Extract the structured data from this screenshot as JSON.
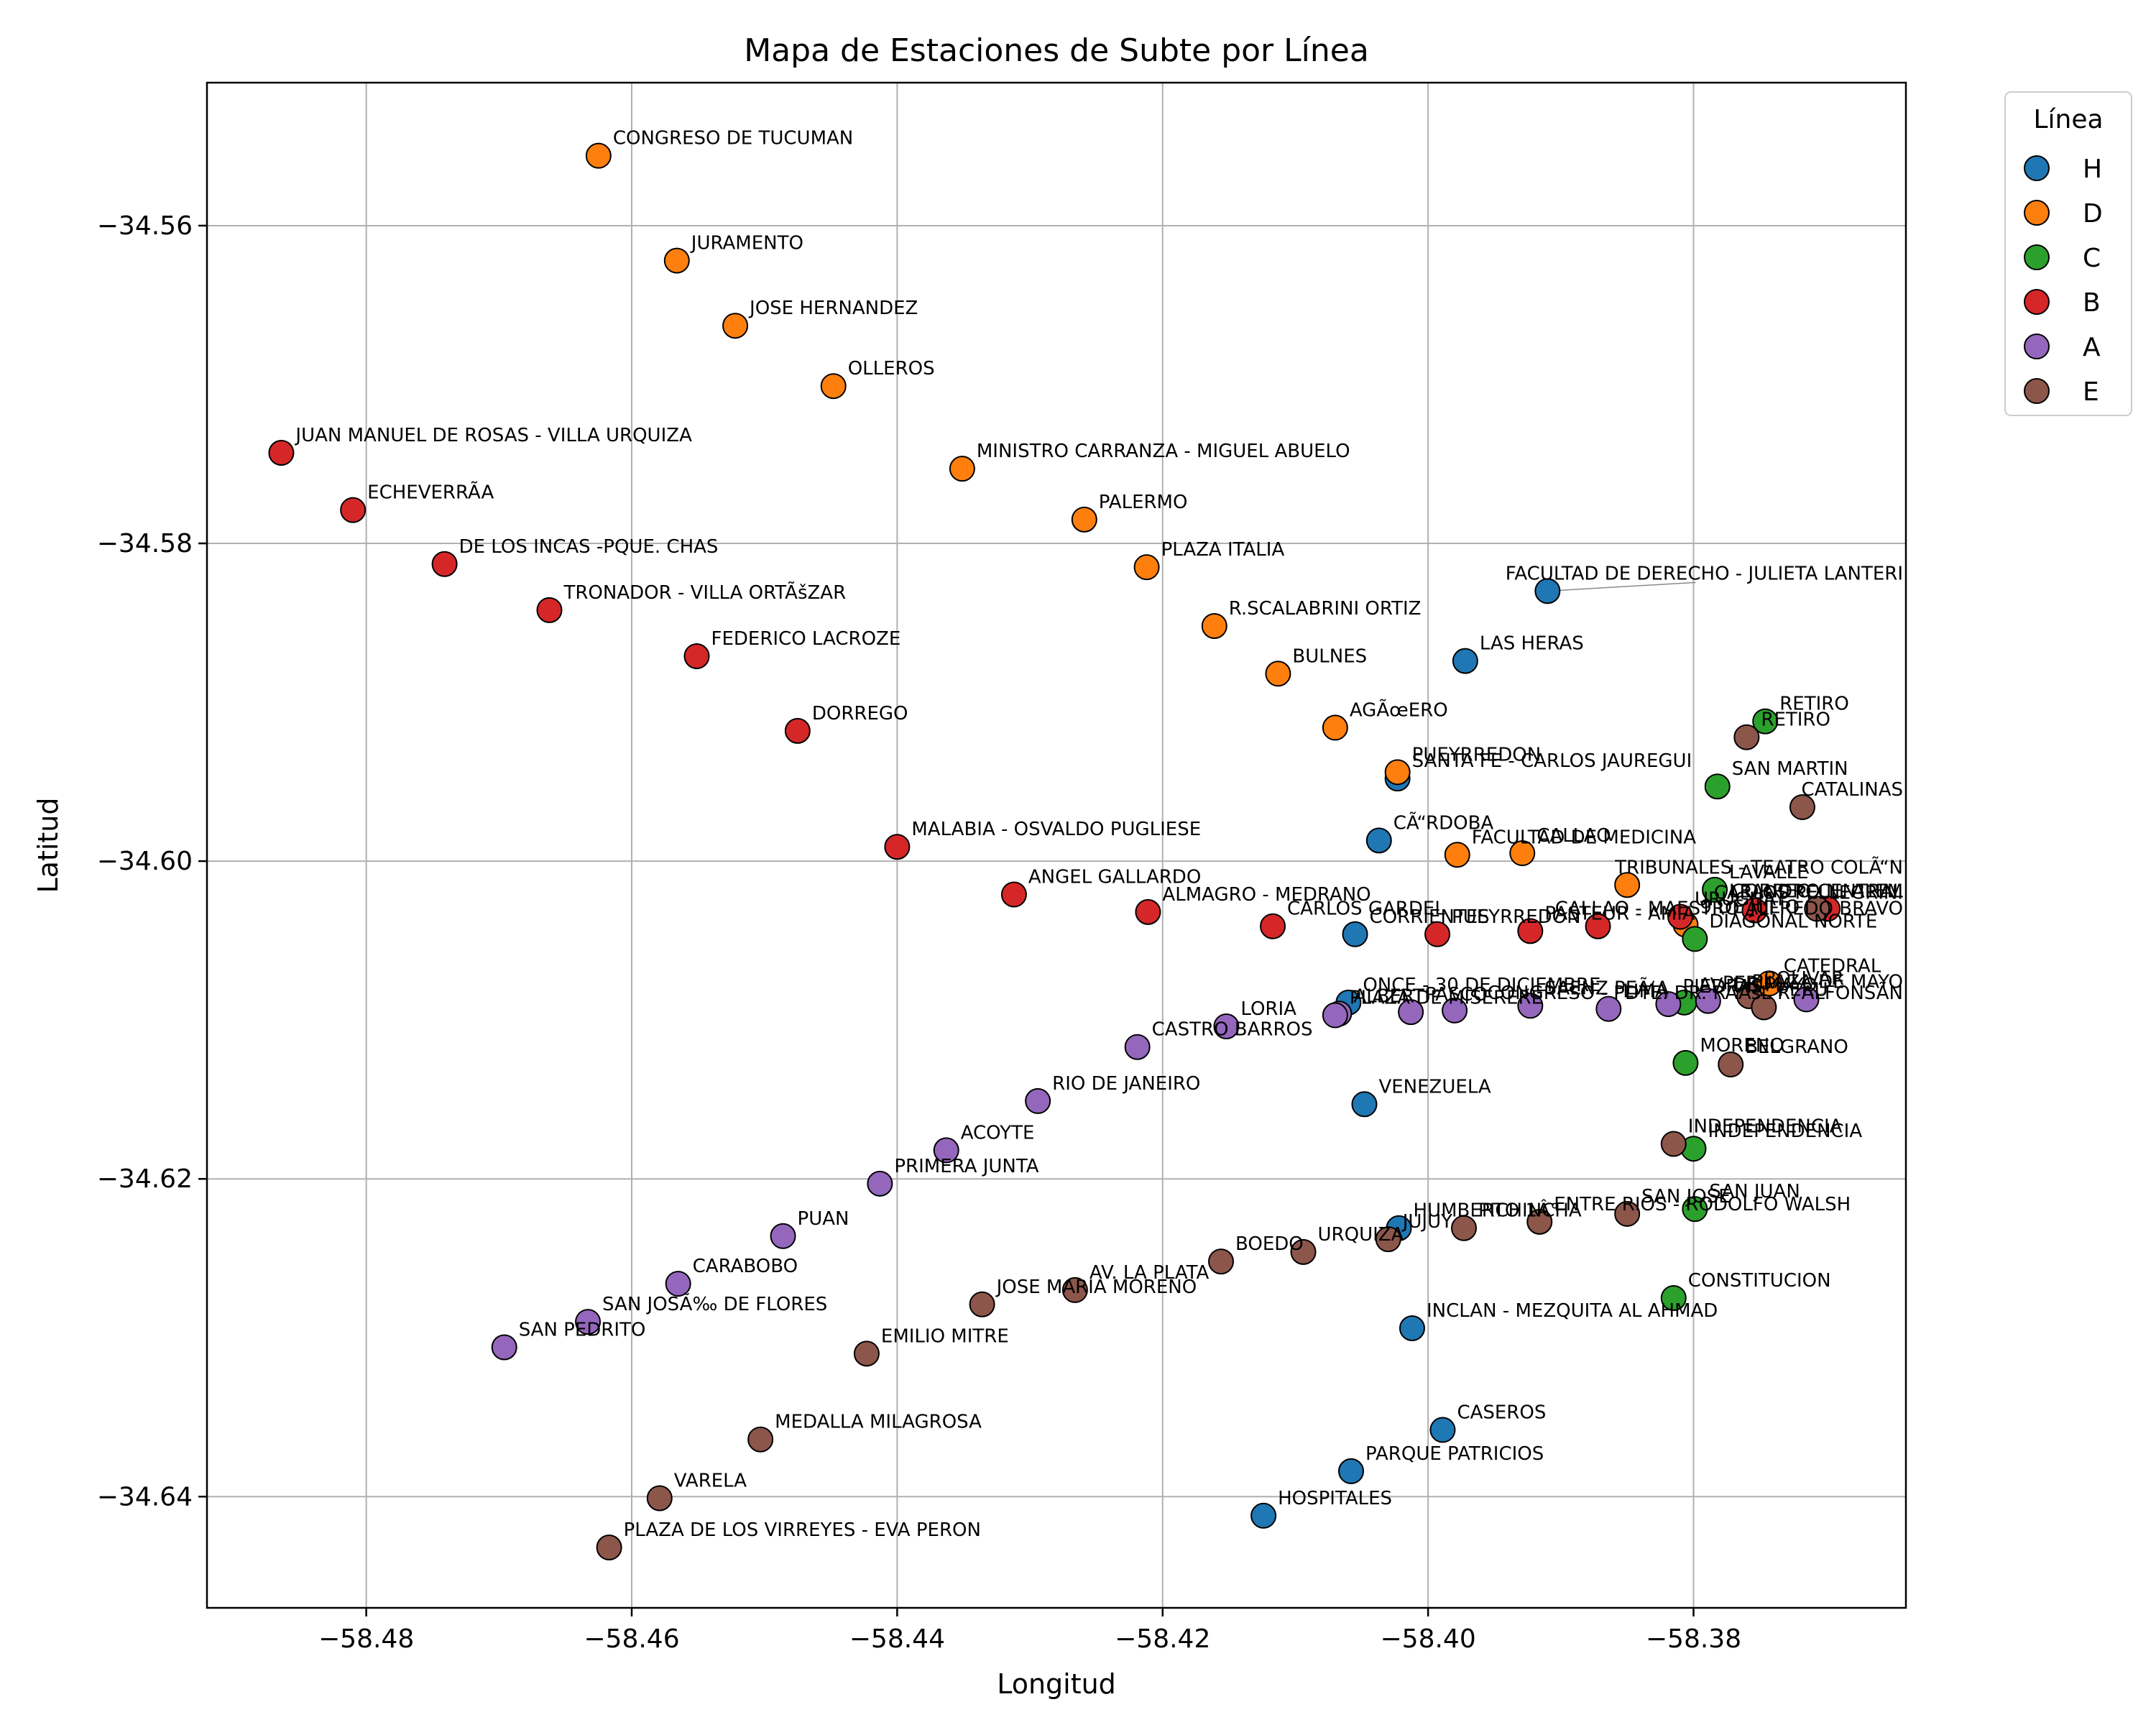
{
  "chart_data": {
    "type": "scatter",
    "title": "Mapa de Estaciones de Subte por Línea",
    "xlabel": "Longitud",
    "ylabel": "Latitud",
    "xlim": [
      -58.492,
      -58.364
    ],
    "ylim": [
      -34.647,
      -34.551
    ],
    "xticks": [
      -58.48,
      -58.46,
      -58.44,
      -58.42,
      -58.4,
      -58.38
    ],
    "xtick_labels": [
      "−58.48",
      "−58.46",
      "−58.44",
      "−58.42",
      "−58.40",
      "−58.38"
    ],
    "yticks": [
      -34.56,
      -34.58,
      -34.6,
      -34.62,
      -34.64
    ],
    "ytick_labels": [
      "−34.56",
      "−34.58",
      "−34.60",
      "−34.62",
      "−34.64"
    ],
    "grid": true,
    "legend": {
      "title": "Línea",
      "placement": "outside-top-right"
    },
    "series": [
      {
        "name": "H",
        "color": "#1f77b4",
        "points": [
          {
            "x": -58.391,
            "y": -34.583,
            "label": "FACULTAD DE DERECHO - JULIETA LANTERI"
          },
          {
            "x": -58.3972,
            "y": -34.5874,
            "label": "LAS HERAS"
          },
          {
            "x": -58.4023,
            "y": -34.5948,
            "label": "SANTA FE - CARLOS JAUREGUI"
          },
          {
            "x": -58.4037,
            "y": -34.5987,
            "label": "CÃ“RDOBA"
          },
          {
            "x": -58.4055,
            "y": -34.6046,
            "label": "CORRIENTES"
          },
          {
            "x": -58.406,
            "y": -34.6089,
            "label": "ONCE - 30 DE DICIEMBRE"
          },
          {
            "x": -58.4048,
            "y": -34.6153,
            "label": "VENEZUELA"
          },
          {
            "x": -58.4022,
            "y": -34.6231,
            "label": "HUMBERTO 1Â°"
          },
          {
            "x": -58.4012,
            "y": -34.6294,
            "label": "INCLAN - MEZQUITA AL AHMAD"
          },
          {
            "x": -58.3989,
            "y": -34.6358,
            "label": "CASEROS"
          },
          {
            "x": -58.4058,
            "y": -34.6384,
            "label": "PARQUE PATRICIOS"
          },
          {
            "x": -58.4124,
            "y": -34.6412,
            "label": "HOSPITALES"
          }
        ]
      },
      {
        "name": "D",
        "color": "#ff7f0e",
        "points": [
          {
            "x": -58.4625,
            "y": -34.5556,
            "label": "CONGRESO DE TUCUMAN"
          },
          {
            "x": -58.4566,
            "y": -34.5622,
            "label": "JURAMENTO"
          },
          {
            "x": -58.4522,
            "y": -34.5663,
            "label": "JOSE HERNANDEZ"
          },
          {
            "x": -58.4448,
            "y": -34.5701,
            "label": "OLLEROS"
          },
          {
            "x": -58.4351,
            "y": -34.5753,
            "label": "MINISTRO CARRANZA - MIGUEL ABUELO"
          },
          {
            "x": -58.4259,
            "y": -34.5785,
            "label": "PALERMO"
          },
          {
            "x": -58.4212,
            "y": -34.5815,
            "label": "PLAZA ITALIA"
          },
          {
            "x": -58.4161,
            "y": -34.5852,
            "label": "R.SCALABRINI ORTIZ"
          },
          {
            "x": -58.4113,
            "y": -34.5882,
            "label": "BULNES"
          },
          {
            "x": -58.407,
            "y": -34.5916,
            "label": "AGÃœERO"
          },
          {
            "x": -58.4023,
            "y": -34.5944,
            "label": "PUEYRREDON"
          },
          {
            "x": -58.3978,
            "y": -34.5996,
            "label": "FACULTAD DE MEDICINA"
          },
          {
            "x": -58.3929,
            "y": -34.5995,
            "label": "CALLAO"
          },
          {
            "x": -58.385,
            "y": -34.6015,
            "label": "TRIBUNALES - TEATRO COLÃ“N"
          },
          {
            "x": -58.3806,
            "y": -34.604,
            "label": "9 DE JULIO"
          },
          {
            "x": -58.3743,
            "y": -34.6077,
            "label": "CATEDRAL"
          }
        ]
      },
      {
        "name": "C",
        "color": "#2ca02c",
        "points": [
          {
            "x": -58.3746,
            "y": -34.5912,
            "label": "RETIRO"
          },
          {
            "x": -58.3782,
            "y": -34.5953,
            "label": "SAN MARTIN"
          },
          {
            "x": -58.3784,
            "y": -34.6018,
            "label": "LAVALLE"
          },
          {
            "x": -58.3799,
            "y": -34.6049,
            "label": "DIAGONAL NORTE"
          },
          {
            "x": -58.3807,
            "y": -34.6089,
            "label": "AV. DE MAYO"
          },
          {
            "x": -58.3806,
            "y": -34.6127,
            "label": "MORENO"
          },
          {
            "x": -58.38,
            "y": -34.6181,
            "label": "INDEPENDENCIA"
          },
          {
            "x": -58.3799,
            "y": -34.6219,
            "label": "SAN JUAN"
          },
          {
            "x": -58.3815,
            "y": -34.6275,
            "label": "CONSTITUCION"
          }
        ]
      },
      {
        "name": "B",
        "color": "#d62728",
        "points": [
          {
            "x": -58.4864,
            "y": -34.5743,
            "label": "JUAN MANUEL DE ROSAS - VILLA URQUIZA"
          },
          {
            "x": -58.481,
            "y": -34.5779,
            "label": "ECHEVERRÃ­A"
          },
          {
            "x": -58.4741,
            "y": -34.5813,
            "label": "DE LOS INCAS -PQUE. CHAS"
          },
          {
            "x": -58.4662,
            "y": -34.5842,
            "label": "TRONADOR - VILLA ORTÃšZAR"
          },
          {
            "x": -58.4551,
            "y": -34.5871,
            "label": "FEDERICO LACROZE"
          },
          {
            "x": -58.4475,
            "y": -34.5918,
            "label": "DORREGO"
          },
          {
            "x": -58.44,
            "y": -34.5991,
            "label": "MALABIA - OSVALDO PUGLIESE"
          },
          {
            "x": -58.4312,
            "y": -34.6021,
            "label": "ANGEL GALLARDO"
          },
          {
            "x": -58.4211,
            "y": -34.6032,
            "label": "ALMAGRO - MEDRANO"
          },
          {
            "x": -58.4117,
            "y": -34.6041,
            "label": "CARLOS GARDEL"
          },
          {
            "x": -58.3993,
            "y": -34.6046,
            "label": "PUEYRREDON"
          },
          {
            "x": -58.3923,
            "y": -34.6044,
            "label": "PASTEUR - AMIA"
          },
          {
            "x": -58.3872,
            "y": -34.6041,
            "label": "CALLAO - MAESTRO ALFREDO BRAVO"
          },
          {
            "x": -58.381,
            "y": -34.6035,
            "label": "URUGUAY"
          },
          {
            "x": -58.3754,
            "y": -34.6031,
            "label": "CARLOS PELLEGRINI"
          },
          {
            "x": -58.3699,
            "y": -34.603,
            "label": "LEANDRO N. ALEM"
          }
        ]
      },
      {
        "name": "A",
        "color": "#9467bd",
        "points": [
          {
            "x": -58.3715,
            "y": -34.6087,
            "label": "PLAZA DE MAYO"
          },
          {
            "x": -58.3789,
            "y": -34.6088,
            "label": "PERU"
          },
          {
            "x": -58.3819,
            "y": -34.609,
            "label": "PIEDRAS"
          },
          {
            "x": -58.3864,
            "y": -34.6093,
            "label": "LIMA"
          },
          {
            "x": -58.3923,
            "y": -34.6091,
            "label": "SAENZ PEÃ‘A"
          },
          {
            "x": -58.398,
            "y": -34.6094,
            "label": "CONGRESO - PDTE. DR. RAÃšL R. ALFONSÃ­N"
          },
          {
            "x": -58.4013,
            "y": -34.6095,
            "label": "PASCO"
          },
          {
            "x": -58.4067,
            "y": -34.6096,
            "label": "ALBERTI"
          },
          {
            "x": -58.407,
            "y": -34.6097,
            "label": "PLAZA DE MISERERE"
          },
          {
            "x": -58.4152,
            "y": -34.6104,
            "label": "LORIA"
          },
          {
            "x": -58.4219,
            "y": -34.6117,
            "label": "CASTRO BARROS"
          },
          {
            "x": -58.4294,
            "y": -34.6151,
            "label": "RIO DE JANEIRO"
          },
          {
            "x": -58.4363,
            "y": -34.6182,
            "label": "ACOYTE"
          },
          {
            "x": -58.4413,
            "y": -34.6203,
            "label": "PRIMERA JUNTA"
          },
          {
            "x": -58.4486,
            "y": -34.6236,
            "label": "PUAN"
          },
          {
            "x": -58.4565,
            "y": -34.6266,
            "label": "CARABOBO"
          },
          {
            "x": -58.4633,
            "y": -34.629,
            "label": "SAN JOSÃ‰ DE FLORES"
          },
          {
            "x": -58.4696,
            "y": -34.6306,
            "label": "SAN PEDRITO"
          }
        ]
      },
      {
        "name": "E",
        "color": "#8c564b",
        "points": [
          {
            "x": -58.376,
            "y": -34.5922,
            "label": "RETIRO"
          },
          {
            "x": -58.3718,
            "y": -34.5966,
            "label": "CATALINAS"
          },
          {
            "x": -58.3707,
            "y": -34.603,
            "label": "CORREO CENTRAL"
          },
          {
            "x": -58.3758,
            "y": -34.6085,
            "label": "BOLIVAR"
          },
          {
            "x": -58.3747,
            "y": -34.6092,
            "label": "PERU"
          },
          {
            "x": -58.3772,
            "y": -34.6128,
            "label": "BELGRANO"
          },
          {
            "x": -58.3815,
            "y": -34.6178,
            "label": "INDEPENDENCIA"
          },
          {
            "x": -58.385,
            "y": -34.6222,
            "label": "SAN JOSE"
          },
          {
            "x": -58.3916,
            "y": -34.6227,
            "label": "ENTRE RIOS - RODOLFO WALSH"
          },
          {
            "x": -58.3973,
            "y": -34.6231,
            "label": "PICHINCHA"
          },
          {
            "x": -58.403,
            "y": -34.6238,
            "label": "JUJUY"
          },
          {
            "x": -58.4094,
            "y": -34.6246,
            "label": "URQUIZA"
          },
          {
            "x": -58.4156,
            "y": -34.6252,
            "label": "BOEDO"
          },
          {
            "x": -58.4266,
            "y": -34.627,
            "label": "AV. LA PLATA"
          },
          {
            "x": -58.4336,
            "y": -34.6279,
            "label": "JOSE MARIA MORENO"
          },
          {
            "x": -58.4423,
            "y": -34.631,
            "label": "EMILIO MITRE"
          },
          {
            "x": -58.4503,
            "y": -34.6364,
            "label": "MEDALLA MILAGROSA"
          },
          {
            "x": -58.4579,
            "y": -34.6401,
            "label": "VARELA"
          },
          {
            "x": -58.4617,
            "y": -34.6432,
            "label": "PLAZA DE LOS VIRREYES - EVA PERON"
          }
        ]
      }
    ]
  }
}
